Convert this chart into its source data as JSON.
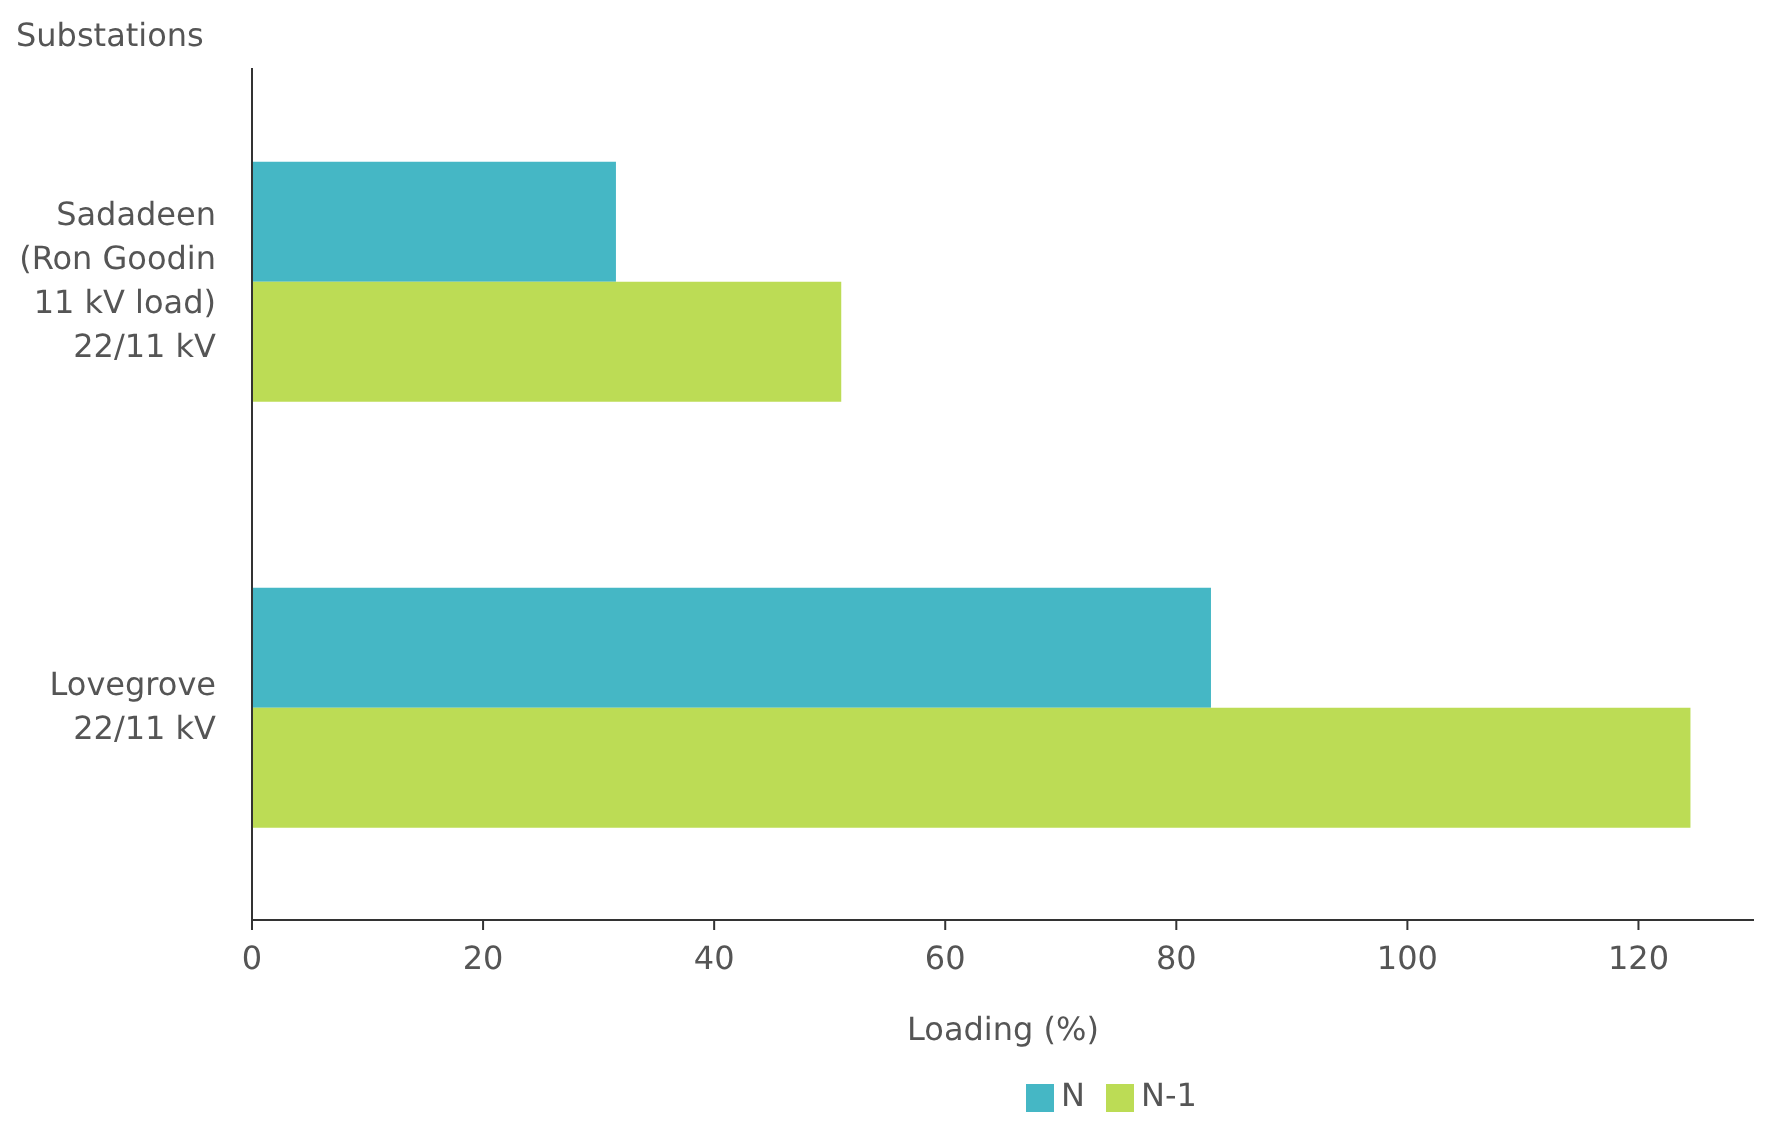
{
  "chart_data": {
    "type": "bar",
    "orientation": "horizontal",
    "ylabel": "Substations",
    "xlabel": "Loading (%)",
    "categories": [
      "Sadadeen\n(Ron Goodin\n11 kV load)\n22/11 kV",
      "Lovegrove\n22/11 kV"
    ],
    "series": [
      {
        "name": "N",
        "color": "#45b7c5",
        "values": [
          31.5,
          83
        ]
      },
      {
        "name": "N-1",
        "color": "#bcdc55",
        "values": [
          51,
          124.5
        ]
      }
    ],
    "xlim": [
      0,
      130
    ],
    "xticks": [
      0,
      20,
      40,
      60,
      80,
      100,
      120
    ],
    "grid": false,
    "legend": "bottom"
  }
}
